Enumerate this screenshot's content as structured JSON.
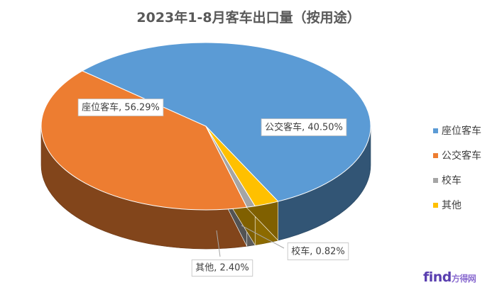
{
  "chart_data": {
    "type": "pie",
    "title": "2023年1-8月客车出口量（按用途）",
    "slices": [
      {
        "name": "座位客车",
        "value": 56.29,
        "label": "座位客车, 56.29%",
        "color": "#5b9bd5"
      },
      {
        "name": "公交客车",
        "value": 40.5,
        "label": "公交客车, 40.50%",
        "color": "#ed7d31"
      },
      {
        "name": "校车",
        "value": 0.82,
        "label": "校车, 0.82%",
        "color": "#a5a5a5"
      },
      {
        "name": "其他",
        "value": 2.4,
        "label": "其他, 2.40%",
        "color": "#ffc000"
      }
    ],
    "legend_position": "right"
  },
  "legend": [
    {
      "label": "座位客车",
      "color": "#5b9bd5"
    },
    {
      "label": "公交客车",
      "color": "#ed7d31"
    },
    {
      "label": "校车",
      "color": "#a5a5a5"
    },
    {
      "label": "其他",
      "color": "#ffc000"
    }
  ],
  "watermark": {
    "main": "find",
    "sub": "方得网"
  }
}
